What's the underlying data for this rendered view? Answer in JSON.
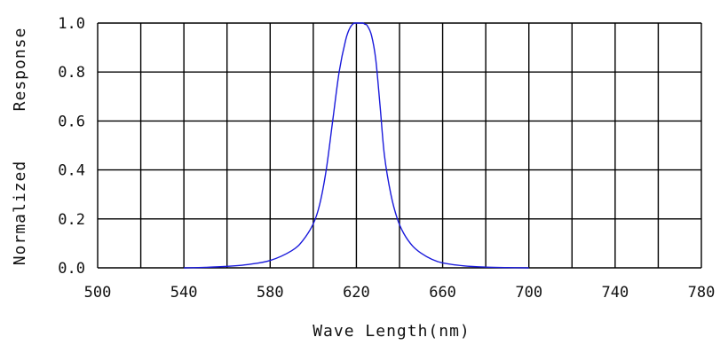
{
  "chart_data": {
    "type": "line",
    "title": "",
    "xlabel": "Wave Length(nm)",
    "ylabel_words": [
      "Normalized",
      "Response"
    ],
    "xlim": [
      500,
      780
    ],
    "ylim": [
      0.0,
      1.0
    ],
    "x_ticks": [
      "500",
      "540",
      "580",
      "620",
      "660",
      "700",
      "740",
      "780"
    ],
    "y_ticks": [
      "0.0",
      "0.2",
      "0.4",
      "0.6",
      "0.8",
      "1.0"
    ],
    "grid": true,
    "line_color": "#1a1adb",
    "grid_color": "#000000",
    "series": [
      {
        "x": [
          540,
          550,
          560,
          570,
          580,
          590,
          595,
          600,
          603,
          606,
          609,
          612,
          615,
          617,
          619,
          621,
          623,
          624,
          625,
          627,
          629,
          631,
          633,
          636,
          639,
          642,
          646,
          650,
          655,
          660,
          670,
          680,
          690,
          700
        ],
        "y": [
          0.0,
          0.002,
          0.006,
          0.014,
          0.03,
          0.07,
          0.11,
          0.18,
          0.26,
          0.4,
          0.6,
          0.8,
          0.93,
          0.98,
          1.0,
          1.0,
          1.0,
          0.995,
          0.99,
          0.95,
          0.85,
          0.66,
          0.46,
          0.3,
          0.2,
          0.14,
          0.09,
          0.06,
          0.035,
          0.02,
          0.008,
          0.003,
          0.001,
          0.0
        ]
      }
    ]
  }
}
